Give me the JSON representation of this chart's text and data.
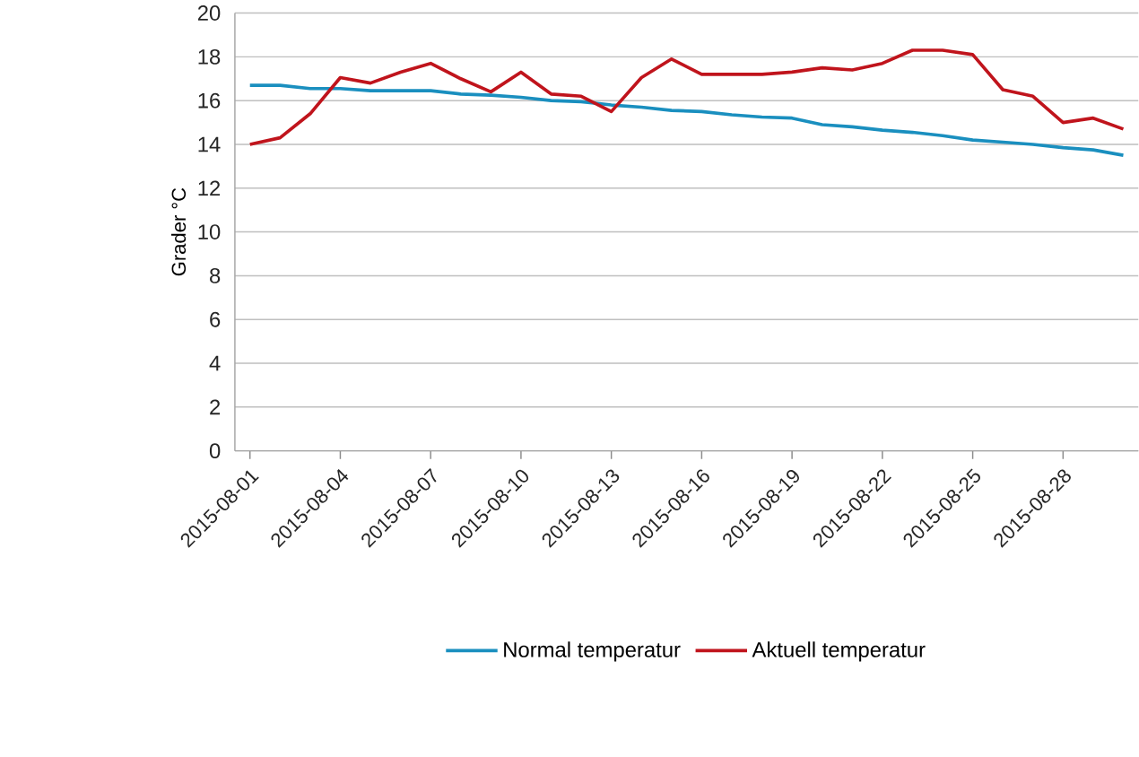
{
  "chart_data": {
    "type": "line",
    "ylabel": "Grader °C",
    "categories": [
      "2015-08-01",
      null,
      null,
      "2015-08-04",
      null,
      null,
      "2015-08-07",
      null,
      null,
      "2015-08-10",
      null,
      null,
      "2015-08-13",
      null,
      null,
      "2015-08-16",
      null,
      null,
      "2015-08-19",
      null,
      null,
      "2015-08-22",
      null,
      null,
      "2015-08-25",
      null,
      null,
      "2015-08-28",
      null,
      null
    ],
    "series": [
      {
        "name": "Normal temperatur",
        "color": "#1a8fbf",
        "values": [
          16.7,
          16.7,
          16.55,
          16.55,
          16.45,
          16.45,
          16.45,
          16.3,
          16.25,
          16.15,
          16.0,
          15.95,
          15.8,
          15.7,
          15.55,
          15.5,
          15.35,
          15.25,
          15.2,
          14.9,
          14.8,
          14.65,
          14.55,
          14.4,
          14.2,
          14.1,
          14.0,
          13.85,
          13.75,
          13.5
        ]
      },
      {
        "name": "Aktuell temperatur",
        "color": "#c0141c",
        "values": [
          14.0,
          14.3,
          15.4,
          17.05,
          16.8,
          17.3,
          17.7,
          17.0,
          16.4,
          17.3,
          16.3,
          16.2,
          15.5,
          17.05,
          17.9,
          17.2,
          17.2,
          17.2,
          17.3,
          17.5,
          17.4,
          17.7,
          18.3,
          18.3,
          18.1,
          16.5,
          16.2,
          15.0,
          15.2,
          14.7
        ]
      }
    ],
    "ylim": [
      0,
      20
    ],
    "yticks": [
      0,
      2,
      4,
      6,
      8,
      10,
      12,
      14,
      16,
      18,
      20
    ],
    "grid": "y",
    "legend": "bottom",
    "marker": "none",
    "line_style": "solid"
  }
}
